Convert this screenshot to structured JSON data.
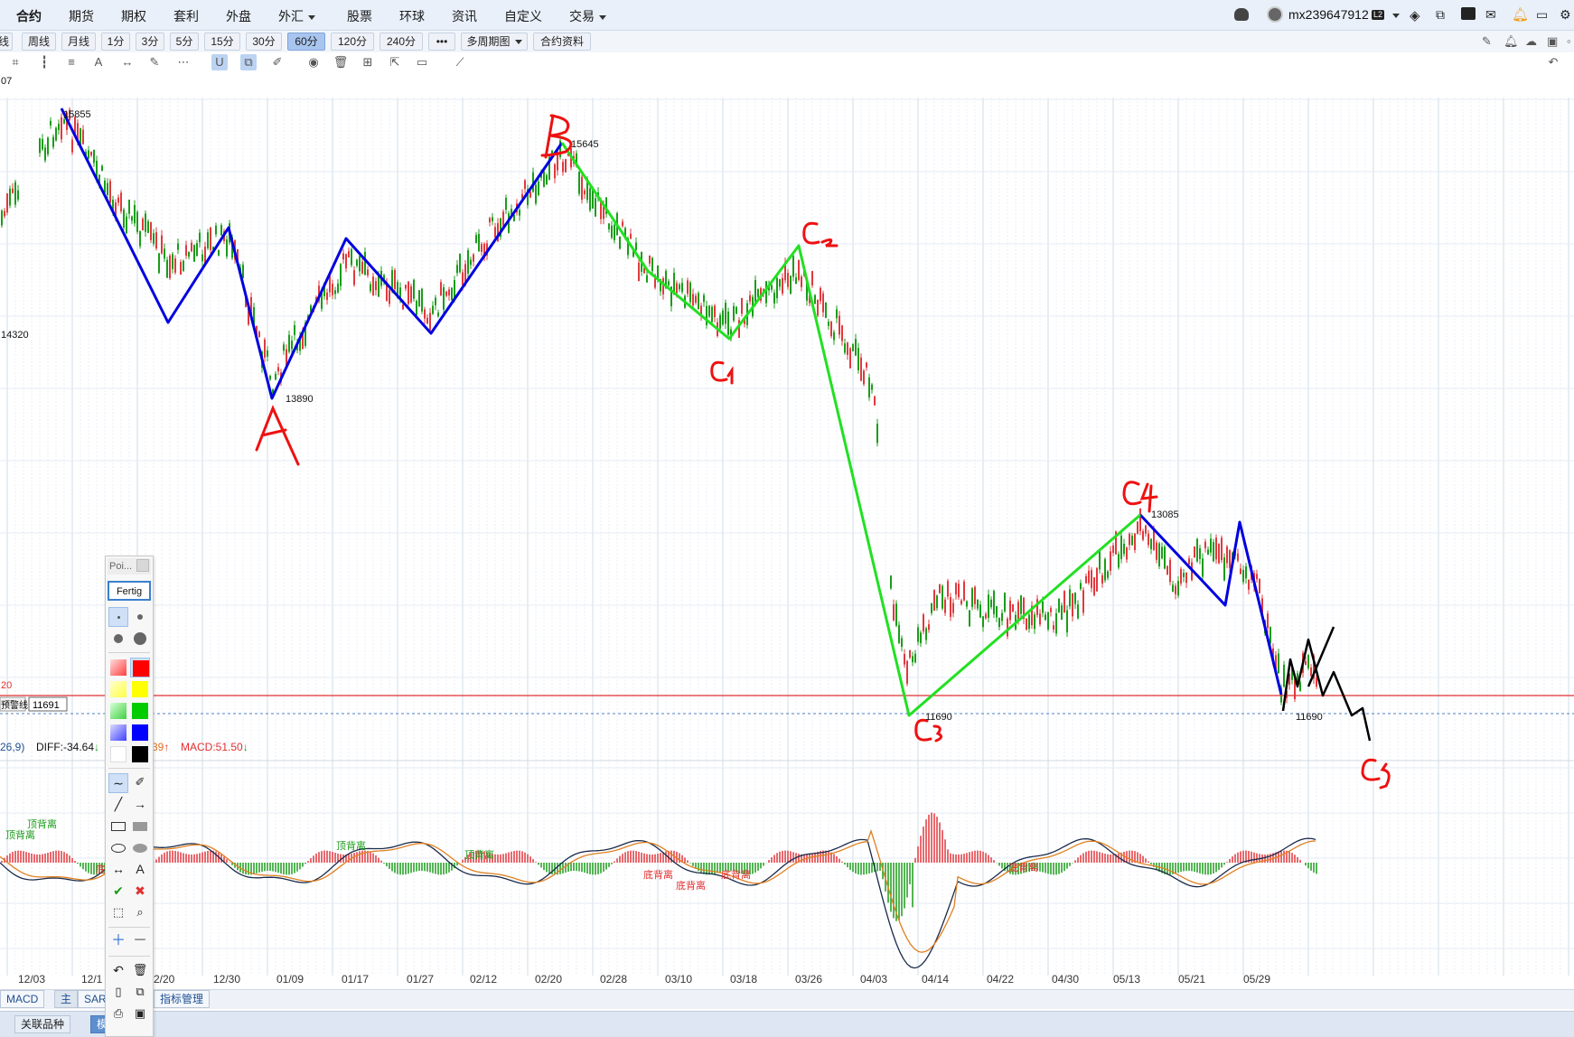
{
  "nav": {
    "items": [
      {
        "label": "合约",
        "active": true,
        "dropdown": false
      },
      {
        "label": "期货",
        "active": false,
        "dropdown": false
      },
      {
        "label": "期权",
        "active": false,
        "dropdown": false
      },
      {
        "label": "套利",
        "active": false,
        "dropdown": false
      },
      {
        "label": "外盘",
        "active": false,
        "dropdown": false
      },
      {
        "label": "外汇",
        "active": false,
        "dropdown": true
      },
      {
        "label": "股票",
        "active": false,
        "dropdown": false
      },
      {
        "label": "环球",
        "active": false,
        "dropdown": false
      },
      {
        "label": "资讯",
        "active": false,
        "dropdown": false
      },
      {
        "label": "自定义",
        "active": false,
        "dropdown": false
      },
      {
        "label": "交易",
        "active": false,
        "dropdown": true
      }
    ],
    "username": "mx239647912",
    "level_badge": "L2"
  },
  "periods": {
    "buttons": [
      "线",
      "周线",
      "月线",
      "1分",
      "3分",
      "5分",
      "15分",
      "30分",
      "60分",
      "120分",
      "240分",
      "•••",
      "多周期图",
      "合约资料"
    ],
    "active": "60分"
  },
  "chart": {
    "left_price_label": "14320",
    "left_cut_label": "07",
    "warn_line_label": "预警线",
    "warn_line_value": "11691",
    "left_red_label": "20",
    "price_high_1": "15855",
    "price_low_A": "13890",
    "price_high_B": "15645",
    "price_low_C3": "11690",
    "price_high_C4": "13085",
    "price_low_end": "11690",
    "handwritten": [
      "A",
      "B",
      "C1",
      "C2",
      "C3",
      "C4",
      "C5"
    ],
    "date_axis": [
      "12/03",
      "12/1",
      "2/20",
      "12/30",
      "01/09",
      "01/17",
      "01/27",
      "02/12",
      "02/20",
      "02/28",
      "03/10",
      "03/18",
      "03/26",
      "04/03",
      "04/14",
      "04/22",
      "04/30",
      "05/13",
      "05/21",
      "05/29"
    ]
  },
  "macd": {
    "params": "26,9)",
    "diff_label": "DIFF:-34.64",
    "dea_label": "39",
    "macd_label": "MACD:51.50",
    "divergence_top": "顶背离",
    "divergence_bottom": "底背离"
  },
  "palette": {
    "title": "Poi...",
    "done_label": "Fertig",
    "colors": [
      "#ff4040",
      "#ff0000",
      "#ffff66",
      "#ffff00",
      "#66e066",
      "#00cc00",
      "#6666ff",
      "#0000ff",
      "#ffffff",
      "#000000"
    ]
  },
  "bottom": {
    "indicator_tabs": [
      "MACD",
      "主",
      "SAR",
      "指标管理"
    ],
    "tabs": [
      "关联品种",
      "模"
    ]
  },
  "colors": {
    "up": "#e0393e",
    "down": "#1a9c1a",
    "blue_wave": "#0000e0",
    "green_wave": "#22e022",
    "handwriting": "#ee1111"
  }
}
